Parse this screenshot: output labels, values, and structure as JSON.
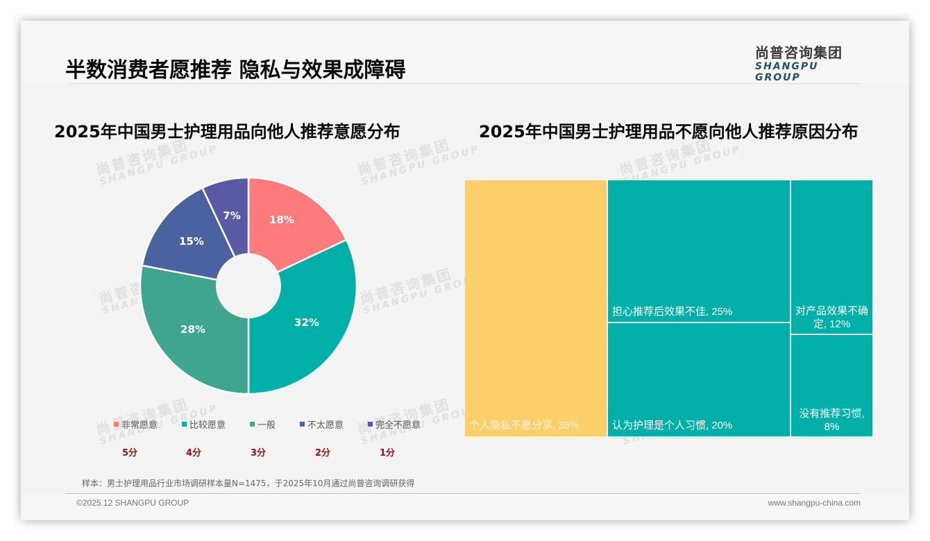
{
  "header": {
    "title": "半数消费者愿推荐 隐私与效果成障碍",
    "logo_cn": "尚普咨询集团",
    "logo_en": "SHANGPU GROUP"
  },
  "watermark": {
    "cn": "尚普咨询集团",
    "en": "SHANGPU GROUP"
  },
  "colors": {
    "very_willing": "#fd7b7d",
    "fairly_willing": "#00b0a8",
    "neutral": "#3fa58f",
    "not_very_willing": "#4a63a0",
    "not_willing_at_all": "#5b58a5",
    "privacy_tile": "#fdcf6a",
    "teal_tile": "#00b0a8",
    "score_red": "#a01010"
  },
  "left_chart": {
    "title": "2025年中国男士护理用品向他人推荐意愿分布",
    "labels": [
      "18%",
      "32%",
      "28%",
      "15%",
      "7%"
    ],
    "legend": [
      {
        "label": "非常愿意",
        "score": "5分"
      },
      {
        "label": "比较愿意",
        "score": "4分"
      },
      {
        "label": "一般",
        "score": "3分"
      },
      {
        "label": "不太愿意",
        "score": "2分"
      },
      {
        "label": "完全不愿意",
        "score": "1分"
      }
    ]
  },
  "right_chart": {
    "title": "2025年中国男士护理用品不愿向他人推荐原因分布",
    "tiles": [
      {
        "label": "个人隐私不愿分享, 35%"
      },
      {
        "label": "担心推荐后效果不佳, 25%"
      },
      {
        "label": "认为护理是个人习惯, 20%"
      },
      {
        "label": "对产品效果不确定, 12%"
      },
      {
        "label": "没有推荐习惯, 8%"
      }
    ]
  },
  "chart_data": [
    {
      "type": "pie",
      "variant": "donut",
      "title": "2025年中国男士护理用品向他人推荐意愿分布",
      "categories": [
        "非常愿意",
        "比较愿意",
        "一般",
        "不太愿意",
        "完全不愿意"
      ],
      "scores": [
        "5分",
        "4分",
        "3分",
        "2分",
        "1分"
      ],
      "values": [
        18,
        32,
        28,
        15,
        7
      ],
      "unit": "%",
      "colors": [
        "#fd7b7d",
        "#00b0a8",
        "#3fa58f",
        "#4a63a0",
        "#5b58a5"
      ],
      "legend_position": "bottom"
    },
    {
      "type": "treemap",
      "title": "2025年中国男士护理用品不愿向他人推荐原因分布",
      "categories": [
        "个人隐私不愿分享",
        "担心推荐后效果不佳",
        "认为护理是个人习惯",
        "对产品效果不确定",
        "没有推荐习惯"
      ],
      "values": [
        35,
        25,
        20,
        12,
        8
      ],
      "unit": "%",
      "colors": [
        "#fdcf6a",
        "#00b0a8",
        "#00b0a8",
        "#00b0a8",
        "#00b0a8"
      ]
    }
  ],
  "footer": {
    "note": "样本：男士护理用品行业市场调研样本量N=1475，于2025年10月通过尚普咨询调研获得",
    "copyright": "©2025.12 SHANGPU GROUP",
    "website": "www.shangpu-china.com"
  }
}
